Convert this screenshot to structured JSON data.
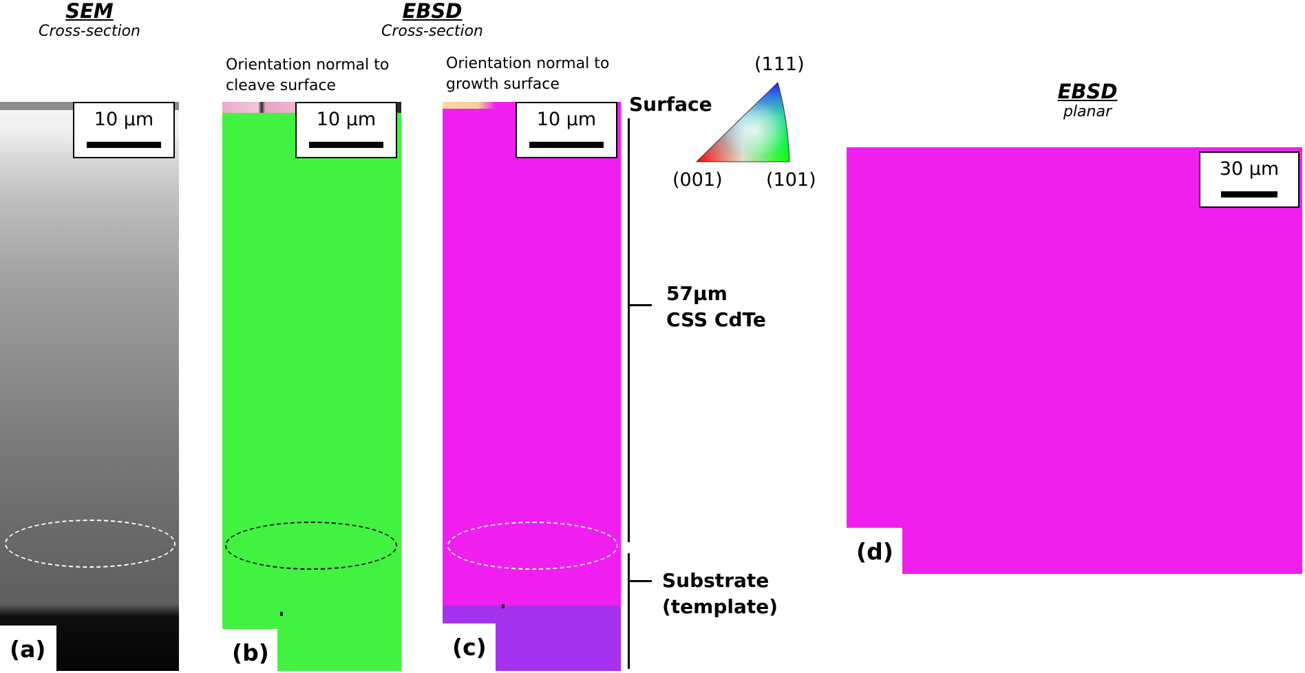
{
  "headers": {
    "sem": {
      "title": "SEM",
      "subtitle": "Cross-section"
    },
    "ebsd_cross": {
      "title": "EBSD",
      "subtitle": "Cross-section"
    },
    "ebsd_planar": {
      "title": "EBSD",
      "subtitle": "planar"
    }
  },
  "captions": {
    "b": {
      "line1": "Orientation normal to",
      "line2": "cleave surface"
    },
    "c": {
      "line1": "Orientation normal to",
      "line2": "growth surface"
    }
  },
  "panels": {
    "a": {
      "label": "(a)",
      "scale": "10 µm"
    },
    "b": {
      "label": "(b)",
      "scale": "10 µm"
    },
    "c": {
      "label": "(c)",
      "scale": "10 µm"
    },
    "d": {
      "label": "(d)",
      "scale": "30 µm"
    }
  },
  "annotations": {
    "surface": "Surface",
    "film_thickness": "57µm",
    "film_material": "CSS CdTe",
    "substrate_line1": "Substrate",
    "substrate_line2": "(template)"
  },
  "ipf_key": {
    "top": "(111)",
    "left": "(001)",
    "right": "(101)"
  },
  "colors": {
    "green_map": "#42f241",
    "magenta_map": "#f11ef0",
    "substrate_purple": "#a532ee"
  }
}
